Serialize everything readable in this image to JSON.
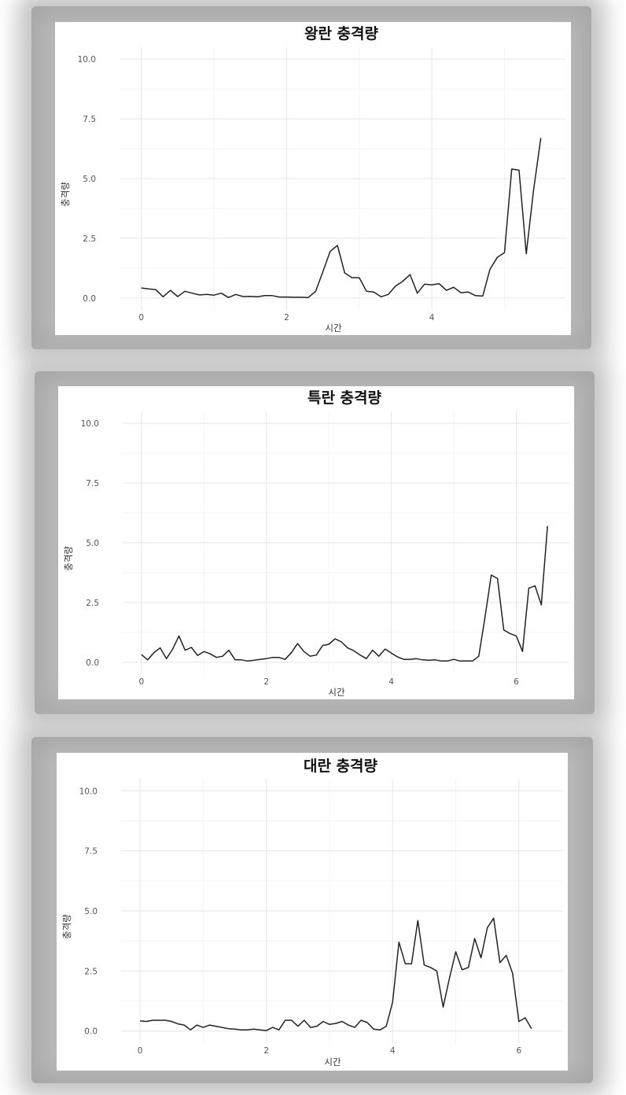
{
  "chart_data": [
    {
      "type": "line",
      "title": "왕란 충격량",
      "xlabel": "시간",
      "ylabel": "충격량",
      "xlim": [
        -0.3,
        5.85
      ],
      "ylim": [
        -0.5,
        10.5
      ],
      "xticks": [
        0,
        2,
        4
      ],
      "yticks": [
        0.0,
        2.5,
        5.0,
        7.5,
        10.0
      ],
      "ytick_labels": [
        "0.0",
        "2.5",
        "5.0",
        "7.5",
        "10.0"
      ],
      "grid": true,
      "series": [
        {
          "x": [
            0,
            0.1,
            0.2,
            0.3,
            0.4,
            0.5,
            0.6,
            0.7,
            0.8,
            0.9,
            1.0,
            1.1,
            1.2,
            1.3,
            1.4,
            1.5,
            1.6,
            1.7,
            1.8,
            1.9,
            2.0,
            2.1,
            2.2,
            2.3,
            2.4,
            2.5,
            2.6,
            2.7,
            2.8,
            2.9,
            3.0,
            3.1,
            3.2,
            3.3,
            3.4,
            3.5,
            3.6,
            3.7,
            3.8,
            3.9,
            4.0,
            4.1,
            4.2,
            4.3,
            4.4,
            4.5,
            4.6,
            4.7,
            4.8,
            4.9,
            5.0,
            5.1,
            5.2,
            5.3,
            5.4,
            5.5
          ],
          "values": [
            0.42,
            0.38,
            0.35,
            0.05,
            0.32,
            0.06,
            0.28,
            0.2,
            0.13,
            0.15,
            0.12,
            0.2,
            0.02,
            0.15,
            0.06,
            0.07,
            0.05,
            0.1,
            0.1,
            0.04,
            0.04,
            0.03,
            0.03,
            0.02,
            0.28,
            1.1,
            1.95,
            2.2,
            1.05,
            0.85,
            0.85,
            0.28,
            0.25,
            0.05,
            0.15,
            0.5,
            0.7,
            0.98,
            0.2,
            0.58,
            0.55,
            0.6,
            0.32,
            0.45,
            0.22,
            0.25,
            0.1,
            0.08,
            1.2,
            1.7,
            1.9,
            5.4,
            5.35,
            1.85,
            4.5,
            6.7
          ]
        }
      ]
    },
    {
      "type": "line",
      "title": "특란 충격량",
      "xlabel": "시간",
      "ylabel": "충격량",
      "xlim": [
        -0.3,
        6.85
      ],
      "ylim": [
        -0.5,
        10.5
      ],
      "xticks": [
        0,
        2,
        4,
        6
      ],
      "yticks": [
        0.0,
        2.5,
        5.0,
        7.5,
        10.0
      ],
      "ytick_labels": [
        "0.0",
        "2.5",
        "5.0",
        "7.5",
        "10.0"
      ],
      "grid": true,
      "series": [
        {
          "x": [
            0,
            0.1,
            0.2,
            0.3,
            0.4,
            0.5,
            0.6,
            0.7,
            0.8,
            0.9,
            1.0,
            1.1,
            1.2,
            1.3,
            1.4,
            1.5,
            1.6,
            1.7,
            1.8,
            1.9,
            2.0,
            2.1,
            2.2,
            2.3,
            2.4,
            2.5,
            2.6,
            2.7,
            2.8,
            2.9,
            3.0,
            3.1,
            3.2,
            3.3,
            3.4,
            3.5,
            3.6,
            3.7,
            3.8,
            3.9,
            4.0,
            4.1,
            4.2,
            4.3,
            4.4,
            4.5,
            4.6,
            4.7,
            4.8,
            4.9,
            5.0,
            5.1,
            5.2,
            5.3,
            5.4,
            5.5,
            5.6,
            5.7,
            5.8,
            5.9,
            6.0,
            6.1,
            6.2,
            6.3,
            6.4,
            6.5
          ],
          "values": [
            0.32,
            0.1,
            0.4,
            0.6,
            0.15,
            0.55,
            1.1,
            0.5,
            0.62,
            0.28,
            0.45,
            0.35,
            0.2,
            0.25,
            0.5,
            0.1,
            0.1,
            0.05,
            0.08,
            0.12,
            0.15,
            0.2,
            0.2,
            0.12,
            0.4,
            0.78,
            0.45,
            0.25,
            0.3,
            0.7,
            0.75,
            0.98,
            0.85,
            0.6,
            0.48,
            0.3,
            0.15,
            0.5,
            0.25,
            0.55,
            0.38,
            0.22,
            0.12,
            0.12,
            0.15,
            0.1,
            0.08,
            0.1,
            0.05,
            0.05,
            0.12,
            0.05,
            0.05,
            0.05,
            0.25,
            1.9,
            3.65,
            3.5,
            1.35,
            1.2,
            1.1,
            0.45,
            3.1,
            3.2,
            2.4,
            5.7
          ]
        }
      ]
    },
    {
      "type": "line",
      "title": "대란 충격량",
      "xlabel": "시간",
      "ylabel": "충격량",
      "xlim": [
        -0.3,
        6.7
      ],
      "ylim": [
        -0.5,
        10.5
      ],
      "xticks": [
        0,
        2,
        4,
        6
      ],
      "yticks": [
        0.0,
        2.5,
        5.0,
        7.5,
        10.0
      ],
      "ytick_labels": [
        "0.0",
        "2.5",
        "5.0",
        "7.5",
        "10.0"
      ],
      "grid": true,
      "series": [
        {
          "x": [
            0,
            0.1,
            0.2,
            0.3,
            0.4,
            0.5,
            0.6,
            0.7,
            0.8,
            0.9,
            1.0,
            1.1,
            1.2,
            1.3,
            1.4,
            1.5,
            1.6,
            1.7,
            1.8,
            1.9,
            2.0,
            2.1,
            2.2,
            2.3,
            2.4,
            2.5,
            2.6,
            2.7,
            2.8,
            2.9,
            3.0,
            3.1,
            3.2,
            3.3,
            3.4,
            3.5,
            3.6,
            3.7,
            3.8,
            3.9,
            4.0,
            4.1,
            4.2,
            4.3,
            4.4,
            4.5,
            4.6,
            4.7,
            4.8,
            4.9,
            5.0,
            5.1,
            5.2,
            5.3,
            5.4,
            5.5,
            5.6,
            5.7,
            5.8,
            5.9,
            6.0,
            6.1,
            6.2
          ],
          "values": [
            0.42,
            0.4,
            0.45,
            0.45,
            0.45,
            0.4,
            0.3,
            0.25,
            0.05,
            0.25,
            0.15,
            0.25,
            0.2,
            0.15,
            0.1,
            0.08,
            0.05,
            0.05,
            0.08,
            0.05,
            0.02,
            0.15,
            0.05,
            0.45,
            0.45,
            0.2,
            0.45,
            0.15,
            0.2,
            0.4,
            0.28,
            0.32,
            0.4,
            0.25,
            0.15,
            0.45,
            0.35,
            0.08,
            0.05,
            0.2,
            1.2,
            3.7,
            2.8,
            2.8,
            4.6,
            2.75,
            2.65,
            2.5,
            1.0,
            2.2,
            3.3,
            2.55,
            2.65,
            3.85,
            3.05,
            4.3,
            4.7,
            2.85,
            3.15,
            2.4,
            0.4,
            0.55,
            0.1
          ]
        }
      ]
    }
  ]
}
